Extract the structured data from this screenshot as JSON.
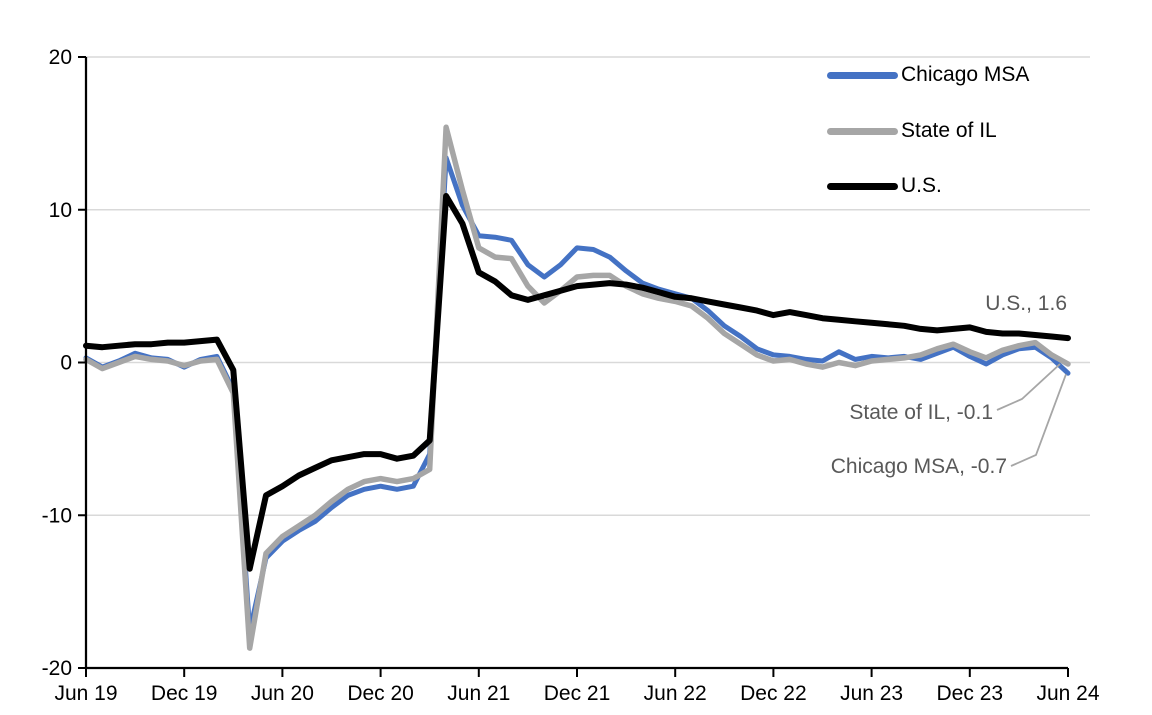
{
  "chart_data": {
    "type": "line",
    "title": "",
    "xlabel": "",
    "ylabel": "",
    "ylim": [
      -20,
      20
    ],
    "grid": "horizontal",
    "legend_position": "top-right",
    "y_tick_labels": [
      "20",
      "10",
      "0",
      "-10",
      "-20"
    ],
    "y_tick_values": [
      20,
      10,
      0,
      -10,
      -20
    ],
    "x_tick_labels": [
      "Jun 19",
      "Dec 19",
      "Jun 20",
      "Dec 20",
      "Jun 21",
      "Dec 21",
      "Jun 22",
      "Dec 22",
      "Jun 23",
      "Dec 23",
      "Jun 24"
    ],
    "months": [
      "Jun 19",
      "Jul 19",
      "Aug 19",
      "Sep 19",
      "Oct 19",
      "Nov 19",
      "Dec 19",
      "Jan 20",
      "Feb 20",
      "Mar 20",
      "Apr 20",
      "May 20",
      "Jun 20",
      "Jul 20",
      "Aug 20",
      "Sep 20",
      "Oct 20",
      "Nov 20",
      "Dec 20",
      "Jan 21",
      "Feb 21",
      "Mar 21",
      "Apr 21",
      "May 21",
      "Jun 21",
      "Jul 21",
      "Aug 21",
      "Sep 21",
      "Oct 21",
      "Nov 21",
      "Dec 21",
      "Jan 22",
      "Feb 22",
      "Mar 22",
      "Apr 22",
      "May 22",
      "Jun 22",
      "Jul 22",
      "Aug 22",
      "Sep 22",
      "Oct 22",
      "Nov 22",
      "Dec 22",
      "Jan 23",
      "Feb 23",
      "Mar 23",
      "Apr 23",
      "May 23",
      "Jun 23",
      "Jul 23",
      "Aug 23",
      "Sep 23",
      "Oct 23",
      "Nov 23",
      "Dec 23",
      "Jan 24",
      "Feb 24",
      "Mar 24",
      "Apr 24",
      "May 24",
      "Jun 24"
    ],
    "series": [
      {
        "name": "Chicago MSA",
        "color": "#4472C4",
        "end_value": -0.7,
        "values": [
          0.3,
          -0.3,
          0.1,
          0.6,
          0.3,
          0.2,
          -0.3,
          0.2,
          0.4,
          -1.8,
          -17.6,
          -12.8,
          -11.7,
          -11.0,
          -10.4,
          -9.5,
          -8.7,
          -8.3,
          -8.1,
          -8.3,
          -8.1,
          -6.0,
          13.4,
          10.3,
          8.3,
          8.2,
          8.0,
          6.4,
          5.6,
          6.4,
          7.5,
          7.4,
          6.9,
          6.0,
          5.2,
          4.8,
          4.5,
          4.2,
          3.4,
          2.4,
          1.7,
          0.9,
          0.5,
          0.4,
          0.2,
          0.1,
          0.7,
          0.2,
          0.4,
          0.3,
          0.4,
          0.2,
          0.6,
          1.0,
          0.4,
          -0.1,
          0.5,
          0.9,
          1.0,
          0.3,
          -0.7
        ]
      },
      {
        "name": "State of IL",
        "color": "#A6A6A6",
        "end_value": -0.1,
        "values": [
          0.2,
          -0.4,
          0.0,
          0.4,
          0.2,
          0.1,
          -0.2,
          0.1,
          0.2,
          -2.0,
          -18.7,
          -12.5,
          -11.4,
          -10.7,
          -10.0,
          -9.1,
          -8.3,
          -7.8,
          -7.6,
          -7.8,
          -7.6,
          -7.0,
          15.4,
          11.3,
          7.5,
          6.9,
          6.8,
          5.0,
          3.9,
          4.7,
          5.6,
          5.7,
          5.7,
          5.0,
          4.5,
          4.2,
          4.0,
          3.7,
          2.9,
          1.9,
          1.2,
          0.5,
          0.1,
          0.2,
          -0.1,
          -0.3,
          0.0,
          -0.2,
          0.1,
          0.2,
          0.3,
          0.5,
          0.9,
          1.2,
          0.7,
          0.3,
          0.8,
          1.1,
          1.3,
          0.5,
          -0.1
        ]
      },
      {
        "name": "U.S.",
        "color": "#000000",
        "end_value": 1.6,
        "values": [
          1.1,
          1.0,
          1.1,
          1.2,
          1.2,
          1.3,
          1.3,
          1.4,
          1.5,
          -0.5,
          -13.5,
          -8.7,
          -8.1,
          -7.4,
          -6.9,
          -6.4,
          -6.2,
          -6.0,
          -6.0,
          -6.3,
          -6.1,
          -5.1,
          10.9,
          9.1,
          5.9,
          5.3,
          4.4,
          4.1,
          4.4,
          4.7,
          5.0,
          5.1,
          5.2,
          5.1,
          4.9,
          4.6,
          4.3,
          4.2,
          4.0,
          3.8,
          3.6,
          3.4,
          3.1,
          3.3,
          3.1,
          2.9,
          2.8,
          2.7,
          2.6,
          2.5,
          2.4,
          2.2,
          2.1,
          2.2,
          2.3,
          2.0,
          1.9,
          1.9,
          1.8,
          1.7,
          1.6
        ]
      }
    ]
  },
  "annotations": {
    "us": "U.S., 1.6",
    "il": "State of IL, -0.1",
    "chicago": "Chicago MSA, -0.7"
  },
  "colors": {
    "gridline": "#D9D9D9",
    "axis": "#000000",
    "annotation_text": "#595959",
    "leader_line": "#A6A6A6",
    "background": "#FFFFFF"
  }
}
